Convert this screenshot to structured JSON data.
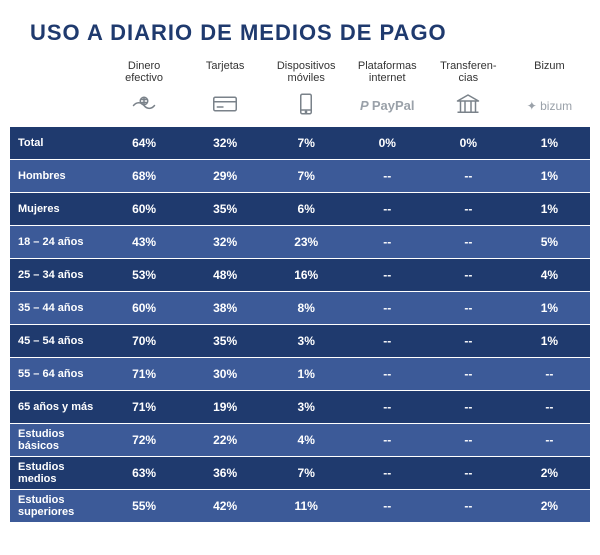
{
  "title": "USO A DIARIO DE MEDIOS DE PAGO",
  "title_color": "#1f3a6e",
  "columns": [
    {
      "label": "Dinero efectivo",
      "icon": "cash"
    },
    {
      "label": "Tarjetas",
      "icon": "card"
    },
    {
      "label": "Dispositivos móviles",
      "icon": "mobile"
    },
    {
      "label": "Plataformas internet",
      "icon": "paypal"
    },
    {
      "label": "Transferen-cias",
      "icon": "bank"
    },
    {
      "label": "Bizum",
      "icon": "bizum"
    }
  ],
  "row_colors": {
    "dark": "#1f3a6e",
    "light": "#3c5a98"
  },
  "rows": [
    {
      "shade": "dark",
      "label": "Total",
      "values": [
        "64%",
        "32%",
        "7%",
        "0%",
        "0%",
        "1%"
      ]
    },
    {
      "shade": "light",
      "label": "Hombres",
      "values": [
        "68%",
        "29%",
        "7%",
        "--",
        "--",
        "1%"
      ]
    },
    {
      "shade": "dark",
      "label": "Mujeres",
      "values": [
        "60%",
        "35%",
        "6%",
        "--",
        "--",
        "1%"
      ]
    },
    {
      "shade": "light",
      "label": "18 – 24 años",
      "values": [
        "43%",
        "32%",
        "23%",
        "--",
        "--",
        "5%"
      ]
    },
    {
      "shade": "dark",
      "label": "25 – 34 años",
      "values": [
        "53%",
        "48%",
        "16%",
        "--",
        "--",
        "4%"
      ]
    },
    {
      "shade": "light",
      "label": "35 – 44 años",
      "values": [
        "60%",
        "38%",
        "8%",
        "--",
        "--",
        "1%"
      ]
    },
    {
      "shade": "dark",
      "label": "45 – 54 años",
      "values": [
        "70%",
        "35%",
        "3%",
        "--",
        "--",
        "1%"
      ]
    },
    {
      "shade": "light",
      "label": "55 – 64 años",
      "values": [
        "71%",
        "30%",
        "1%",
        "--",
        "--",
        "--"
      ]
    },
    {
      "shade": "dark",
      "label": "65 años y más",
      "values": [
        "71%",
        "19%",
        "3%",
        "--",
        "--",
        "--"
      ]
    },
    {
      "shade": "light",
      "label": "Estudios básicos",
      "values": [
        "72%",
        "22%",
        "4%",
        "--",
        "--",
        "--"
      ]
    },
    {
      "shade": "dark",
      "label": "Estudios medios",
      "values": [
        "63%",
        "36%",
        "7%",
        "--",
        "--",
        "2%"
      ]
    },
    {
      "shade": "light",
      "label": "Estudios superiores",
      "values": [
        "55%",
        "42%",
        "11%",
        "--",
        "--",
        "2%"
      ]
    }
  ]
}
